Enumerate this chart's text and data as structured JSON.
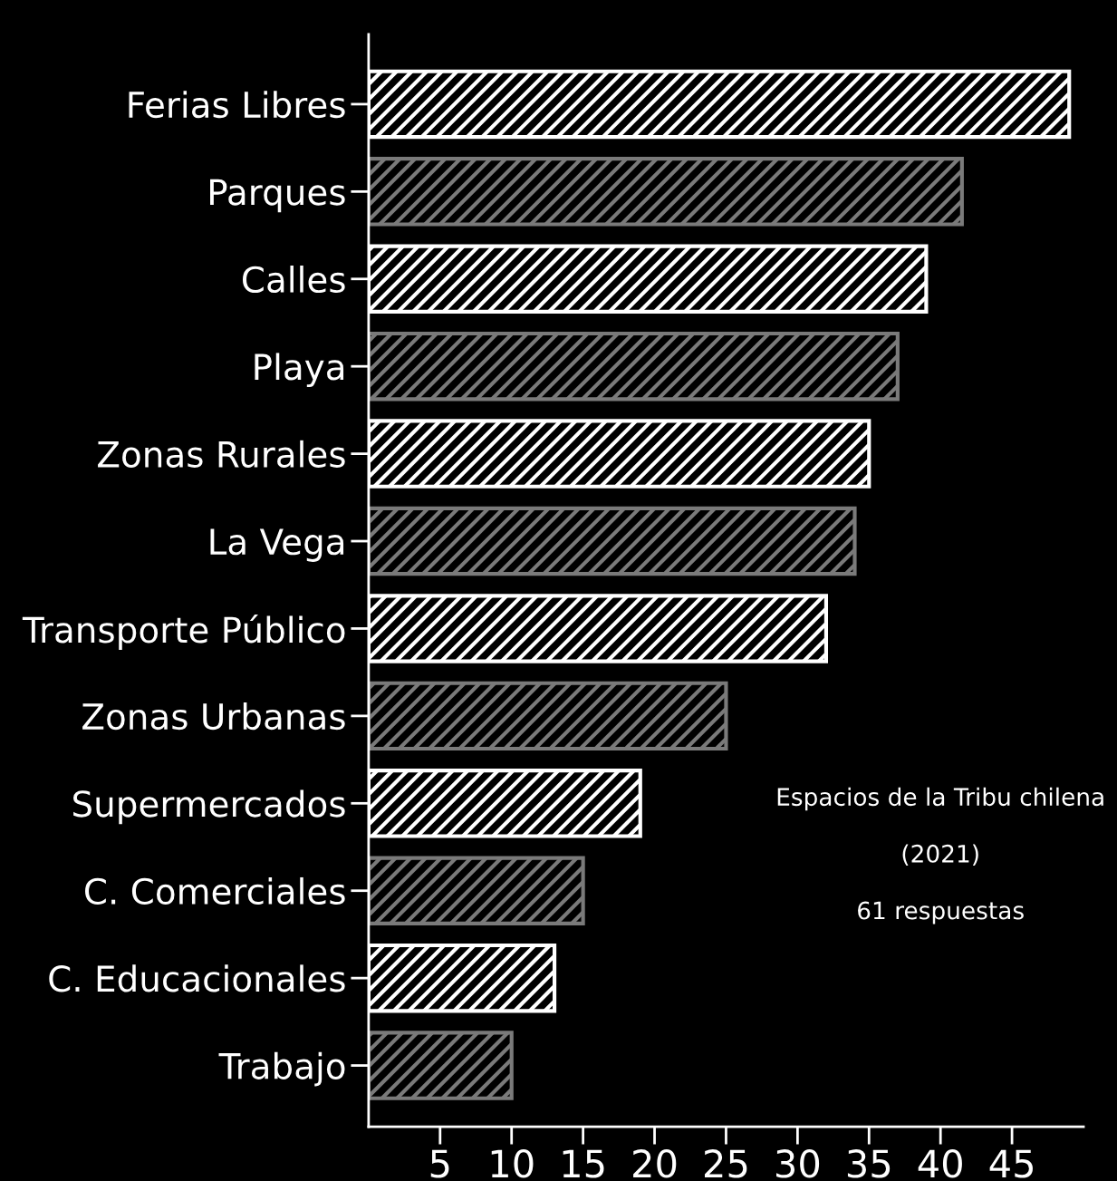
{
  "chart_data": {
    "type": "bar",
    "orientation": "horizontal",
    "categories": [
      "Ferias Libres",
      "Parques",
      "Calles",
      "Playa",
      "Zonas Rurales",
      "La Vega",
      "Transporte Público",
      "Zonas Urbanas",
      "Supermercados",
      "C. Comerciales",
      "C. Educacionales",
      "Trabajo"
    ],
    "values": [
      49,
      41.5,
      39,
      37,
      35,
      34,
      32,
      25,
      19,
      15,
      13,
      10
    ],
    "colors": [
      "#ffffff",
      "#7a7a7a",
      "#ffffff",
      "#7a7a7a",
      "#ffffff",
      "#7a7a7a",
      "#ffffff",
      "#7a7a7a",
      "#ffffff",
      "#7a7a7a",
      "#ffffff",
      "#7a7a7a"
    ],
    "xlim": [
      0,
      50
    ],
    "xticks": [
      5,
      10,
      15,
      20,
      25,
      30,
      35,
      40,
      45
    ],
    "grid": false,
    "legend": false,
    "annotations": [
      "Espacios de la Tribu chilena",
      "(2021)",
      "61 respuestas"
    ]
  }
}
